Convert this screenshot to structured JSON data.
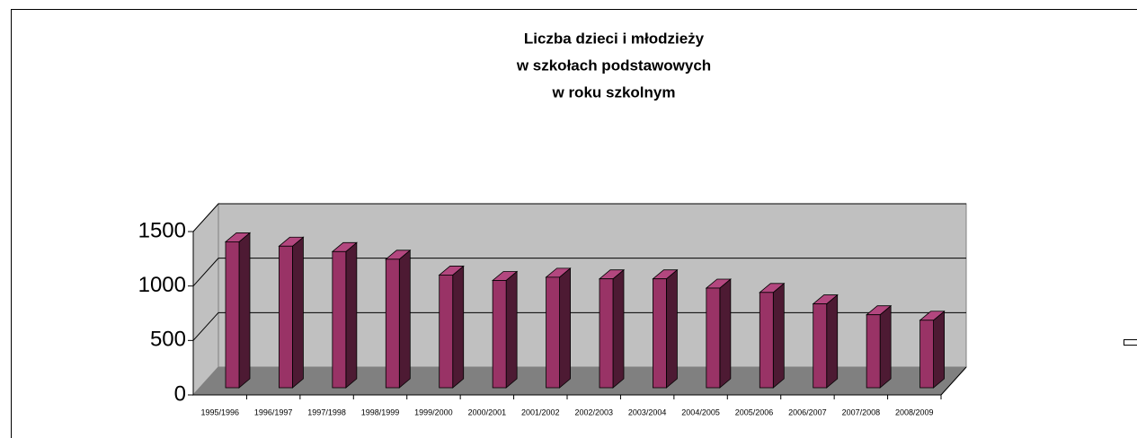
{
  "chart_data": {
    "type": "bar3d",
    "title": [
      "Liczba dzieci i młodzieży",
      "w szkołach podstawowych",
      "w roku szkolnym"
    ],
    "categories": [
      "1995/1996",
      "1996/1997",
      "1997/1998",
      "1998/1999",
      "1999/2000",
      "2000/2001",
      "2001/2002",
      "2002/2003",
      "2003/2004",
      "2004/2005",
      "2005/2006",
      "2006/2007",
      "2007/2008",
      "2008/2009"
    ],
    "values": [
      1340,
      1300,
      1250,
      1180,
      1035,
      985,
      1015,
      1000,
      1000,
      915,
      875,
      770,
      670,
      620
    ],
    "color": "#993366",
    "ylim": [
      0,
      1500
    ],
    "yticks": [
      0,
      500,
      1000,
      1500
    ],
    "grid": true
  }
}
